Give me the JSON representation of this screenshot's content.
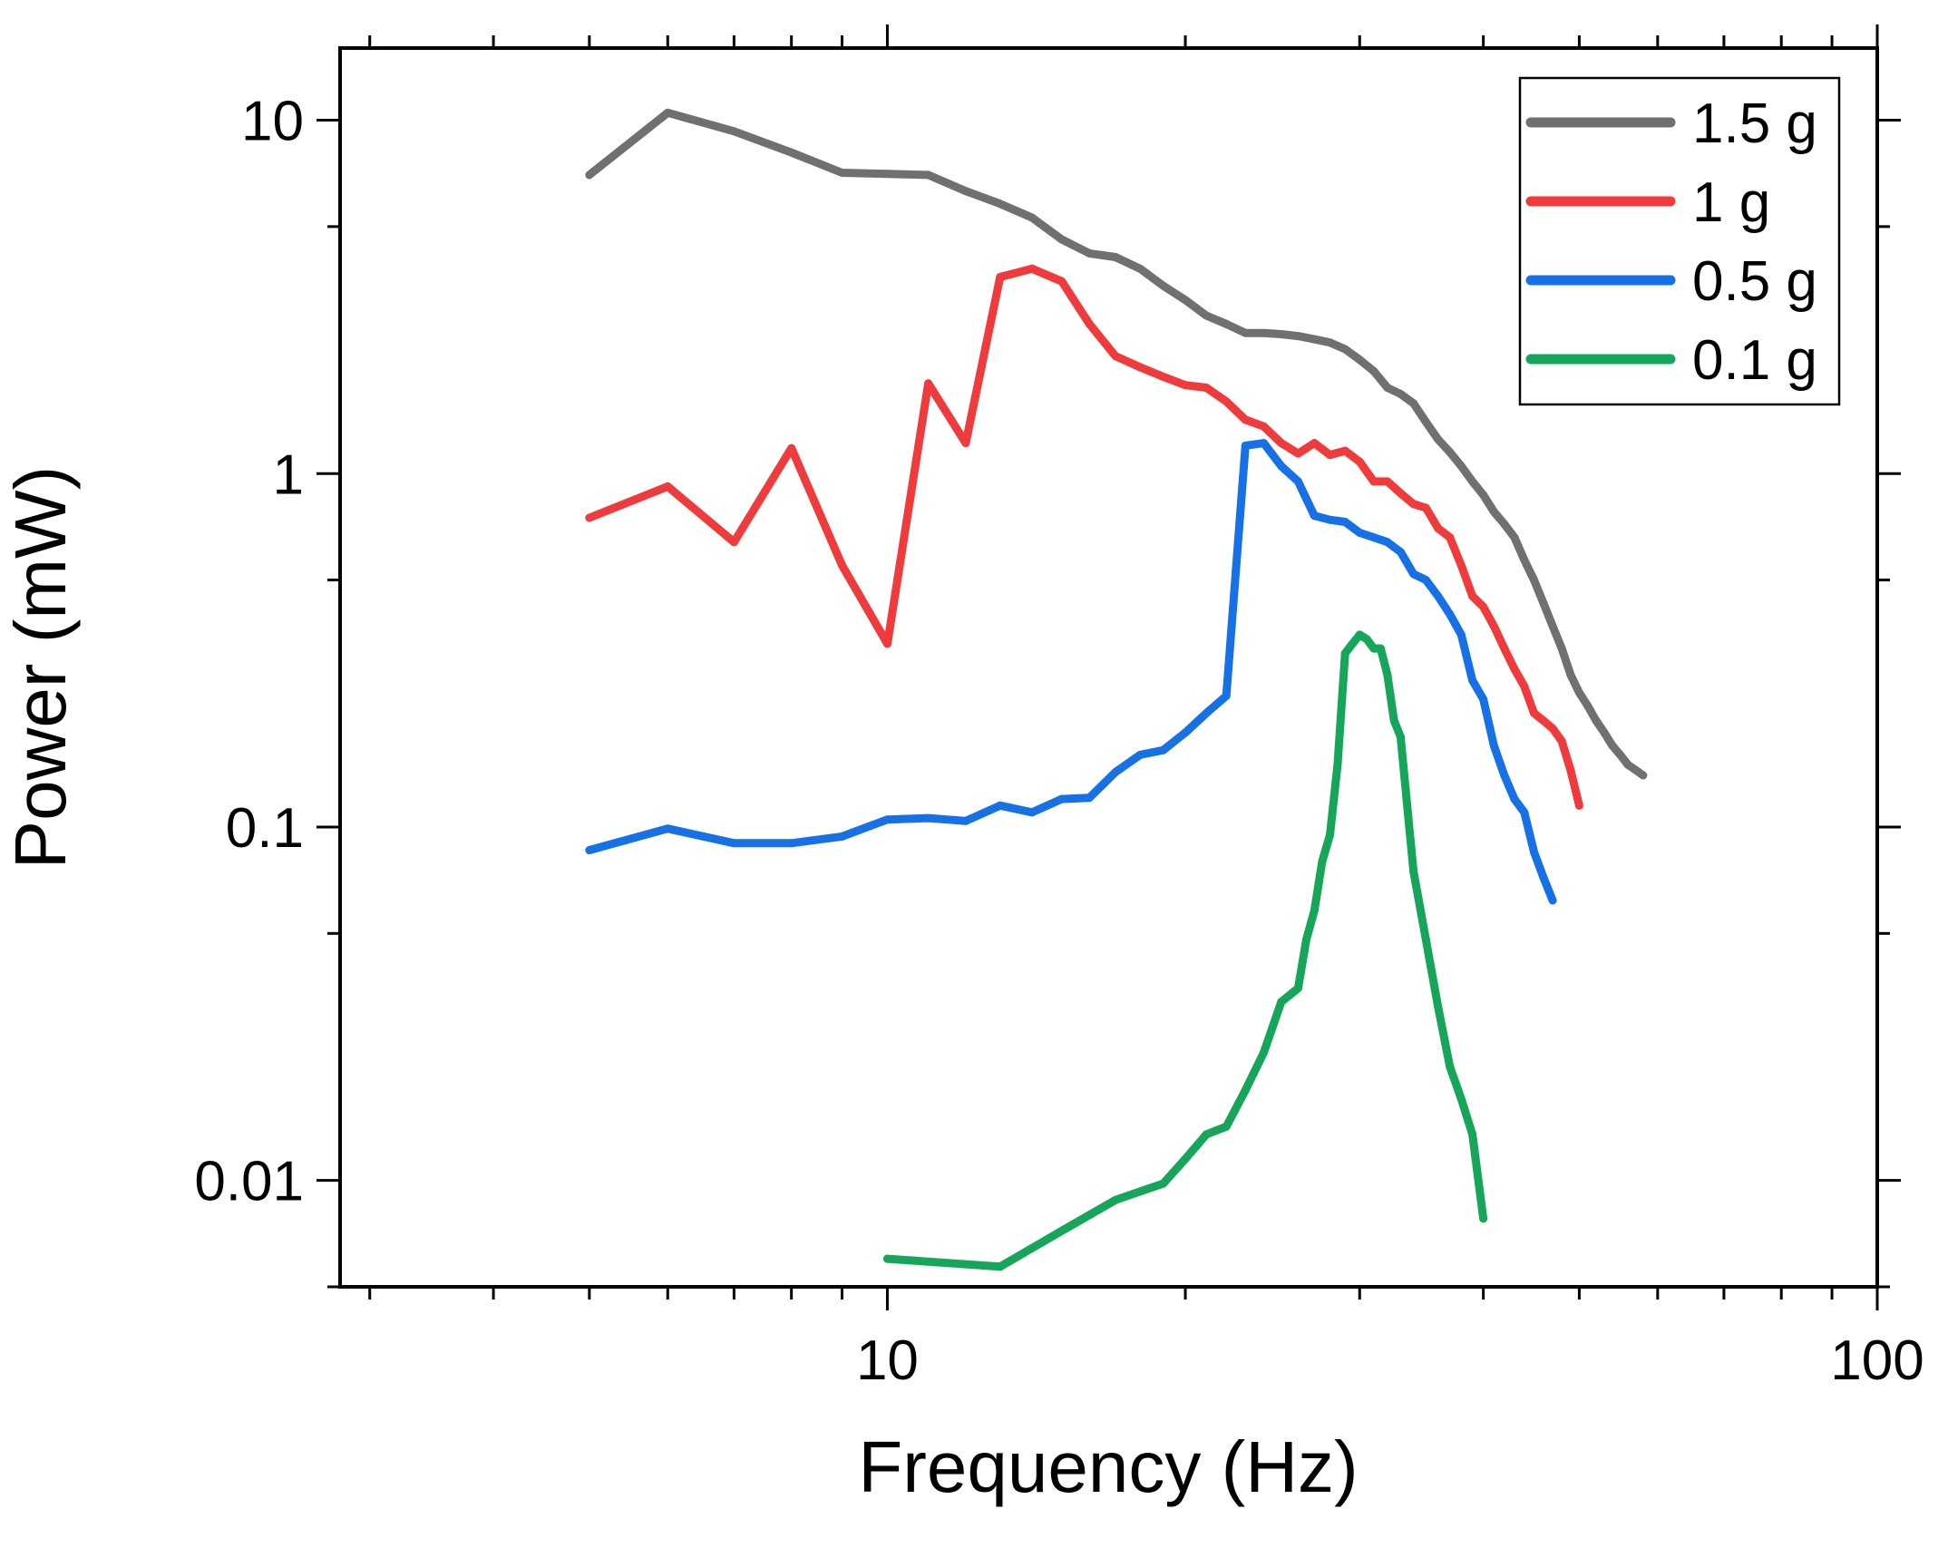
{
  "chart_data": {
    "type": "line",
    "xlabel": "Frequency (Hz)",
    "ylabel": "Power (mW)",
    "xscale": "log",
    "yscale": "log",
    "xlim": [
      2.8,
      100
    ],
    "ylim": [
      0.005,
      16
    ],
    "x_ticks": [
      10,
      100
    ],
    "x_tick_labels": [
      "10",
      "100"
    ],
    "y_ticks": [
      0.01,
      0.1,
      1,
      10
    ],
    "y_tick_labels": [
      "0.01",
      "0.1",
      "1",
      "10"
    ],
    "legend_position": "top-right",
    "series": [
      {
        "name": "1.5 g",
        "color": "#707070",
        "x": [
          5,
          6,
          7,
          8,
          9,
          10,
          11,
          12,
          13,
          14,
          15,
          16,
          17,
          18,
          19,
          20,
          21,
          22,
          23,
          24,
          25,
          26,
          27,
          28,
          29,
          30,
          31,
          32,
          33,
          34,
          35,
          36,
          37,
          38,
          39,
          40,
          41,
          42,
          43,
          44,
          45,
          46,
          47,
          48,
          49,
          50,
          51,
          52,
          53,
          54,
          55,
          56,
          57,
          58
        ],
        "values": [
          7.0,
          10.5,
          9.3,
          8.1,
          7.1,
          7.05,
          7.0,
          6.3,
          5.8,
          5.3,
          4.6,
          4.2,
          4.1,
          3.8,
          3.4,
          3.1,
          2.8,
          2.65,
          2.5,
          2.5,
          2.48,
          2.45,
          2.4,
          2.35,
          2.25,
          2.1,
          1.95,
          1.75,
          1.68,
          1.58,
          1.4,
          1.25,
          1.15,
          1.05,
          0.95,
          0.87,
          0.78,
          0.72,
          0.66,
          0.57,
          0.5,
          0.43,
          0.37,
          0.32,
          0.27,
          0.24,
          0.22,
          0.2,
          0.185,
          0.17,
          0.16,
          0.15,
          0.145,
          0.14
        ]
      },
      {
        "name": "1 g",
        "color": "#ef3b3b",
        "x": [
          5,
          6,
          7,
          8,
          9,
          10,
          11,
          12,
          13,
          14,
          15,
          16,
          17,
          18,
          19,
          20,
          21,
          22,
          23,
          24,
          25,
          26,
          27,
          28,
          29,
          30,
          31,
          32,
          33,
          34,
          35,
          36,
          37,
          38,
          39,
          40,
          41,
          42,
          43,
          44,
          45,
          46,
          47,
          48,
          49,
          50
        ],
        "values": [
          0.75,
          0.92,
          0.64,
          1.18,
          0.55,
          0.33,
          1.8,
          1.22,
          3.6,
          3.8,
          3.5,
          2.65,
          2.15,
          2.0,
          1.88,
          1.78,
          1.75,
          1.6,
          1.42,
          1.36,
          1.22,
          1.14,
          1.22,
          1.13,
          1.16,
          1.08,
          0.95,
          0.95,
          0.88,
          0.82,
          0.8,
          0.7,
          0.66,
          0.55,
          0.45,
          0.42,
          0.37,
          0.32,
          0.28,
          0.25,
          0.21,
          0.2,
          0.19,
          0.175,
          0.145,
          0.115
        ]
      },
      {
        "name": "0.5 g",
        "color": "#1670e6",
        "x": [
          5,
          6,
          7,
          8,
          9,
          10,
          11,
          12,
          13,
          14,
          15,
          16,
          17,
          18,
          19,
          20,
          21,
          22,
          23,
          24,
          25,
          26,
          27,
          28,
          29,
          30,
          31,
          32,
          33,
          34,
          35,
          36,
          37,
          38,
          39,
          40,
          41,
          42,
          43,
          44,
          45,
          46,
          47
        ],
        "values": [
          0.086,
          0.099,
          0.09,
          0.09,
          0.094,
          0.105,
          0.106,
          0.104,
          0.115,
          0.11,
          0.12,
          0.121,
          0.143,
          0.16,
          0.165,
          0.185,
          0.21,
          0.235,
          1.2,
          1.22,
          1.05,
          0.95,
          0.76,
          0.74,
          0.73,
          0.68,
          0.66,
          0.64,
          0.6,
          0.52,
          0.5,
          0.45,
          0.4,
          0.35,
          0.26,
          0.23,
          0.17,
          0.14,
          0.12,
          0.11,
          0.085,
          0.072,
          0.062
        ]
      },
      {
        "name": "0.1 g",
        "color": "#16a65a",
        "x": [
          10,
          13,
          15,
          17,
          19,
          20,
          21,
          22,
          23,
          24,
          25,
          26,
          26.5,
          27,
          27.5,
          28,
          28.5,
          29,
          29.5,
          30,
          30.5,
          31,
          31.5,
          32,
          32.5,
          33,
          34,
          35,
          36,
          37,
          38,
          39,
          40
        ],
        "values": [
          0.006,
          0.0057,
          0.0072,
          0.0088,
          0.0098,
          0.0115,
          0.0135,
          0.0142,
          0.018,
          0.023,
          0.032,
          0.035,
          0.048,
          0.058,
          0.08,
          0.095,
          0.15,
          0.31,
          0.33,
          0.35,
          0.34,
          0.32,
          0.32,
          0.27,
          0.2,
          0.18,
          0.075,
          0.048,
          0.031,
          0.021,
          0.017,
          0.0135,
          0.0078
        ]
      }
    ]
  }
}
